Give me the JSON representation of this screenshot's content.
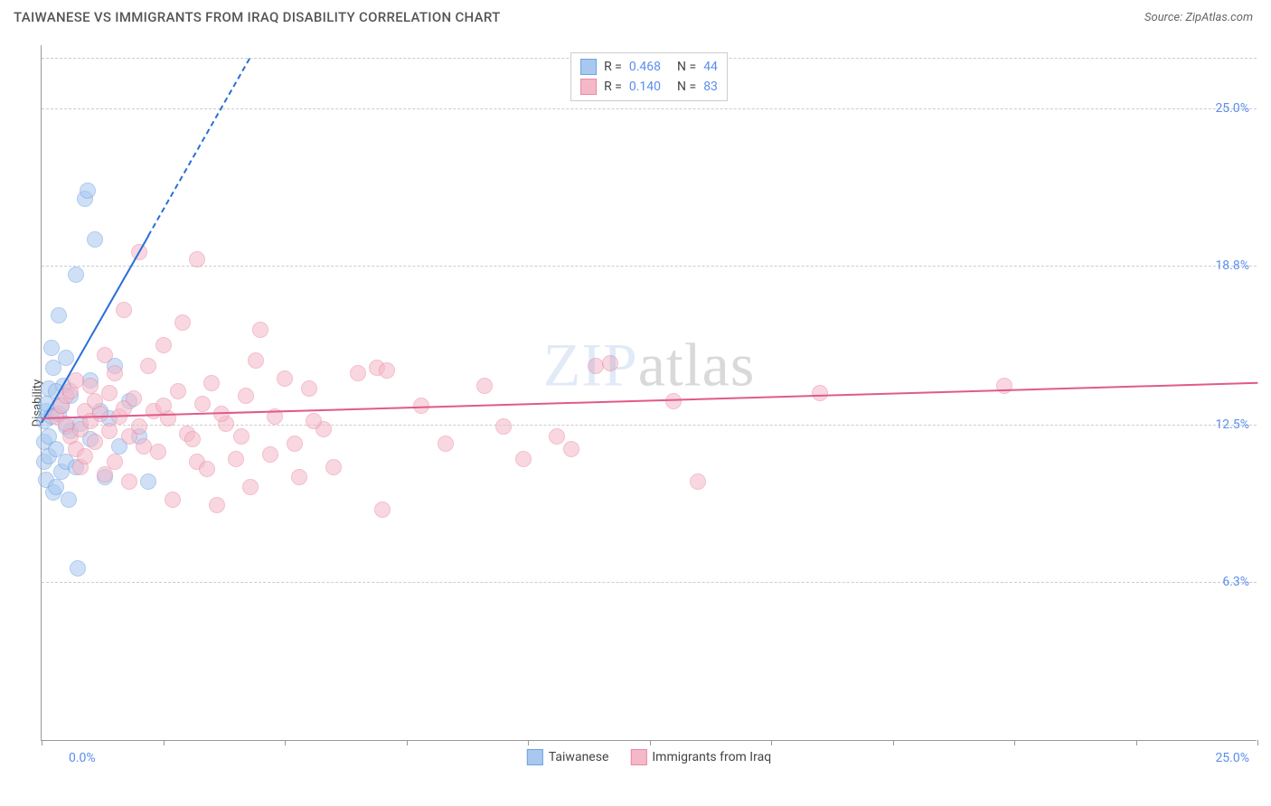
{
  "header": {
    "title": "TAIWANESE VS IMMIGRANTS FROM IRAQ DISABILITY CORRELATION CHART",
    "source_prefix": "Source: ",
    "source_name": "ZipAtlas.com"
  },
  "watermark": {
    "prefix": "ZIP",
    "suffix": "atlas"
  },
  "chart": {
    "type": "scatter",
    "ylabel": "Disability",
    "xlim": [
      0,
      25
    ],
    "ylim": [
      0,
      27.5
    ],
    "background_color": "#ffffff",
    "grid_color": "#cccccc",
    "axis_color": "#999999",
    "y_grid_lines": [
      6.3,
      12.5,
      18.8,
      25.0,
      27.0
    ],
    "y_tick_labels": [
      {
        "v": 6.3,
        "label": "6.3%"
      },
      {
        "v": 12.5,
        "label": "12.5%"
      },
      {
        "v": 18.8,
        "label": "18.8%"
      },
      {
        "v": 25.0,
        "label": "25.0%"
      }
    ],
    "x_ticks": [
      0,
      2.5,
      5,
      7.5,
      10,
      12.5,
      15,
      17.5,
      20,
      22.5,
      25
    ],
    "x_axis_label_left": "0.0%",
    "x_axis_label_right": "25.0%",
    "point_radius": 9,
    "point_opacity": 0.55,
    "series": [
      {
        "name": "Taiwanese",
        "fill_color": "#a8c8f0",
        "stroke_color": "#6fa3e0",
        "R": "0.468",
        "N": "44",
        "trend": {
          "x1": 0,
          "y1": 12.6,
          "x2": 2.2,
          "y2": 20.0,
          "extend_dashed_to_y": 27.0,
          "color": "#2a6fd6",
          "width": 2
        },
        "points": [
          [
            0.05,
            11.0
          ],
          [
            0.05,
            11.8
          ],
          [
            0.05,
            12.6
          ],
          [
            0.1,
            13.0
          ],
          [
            0.1,
            13.3
          ],
          [
            0.1,
            10.3
          ],
          [
            0.15,
            13.9
          ],
          [
            0.15,
            12.0
          ],
          [
            0.15,
            11.2
          ],
          [
            0.2,
            12.8
          ],
          [
            0.2,
            15.5
          ],
          [
            0.25,
            14.7
          ],
          [
            0.25,
            9.8
          ],
          [
            0.3,
            10.0
          ],
          [
            0.3,
            11.5
          ],
          [
            0.35,
            16.8
          ],
          [
            0.35,
            12.9
          ],
          [
            0.4,
            13.2
          ],
          [
            0.4,
            10.6
          ],
          [
            0.45,
            14.0
          ],
          [
            0.5,
            15.1
          ],
          [
            0.5,
            11.0
          ],
          [
            0.55,
            9.5
          ],
          [
            0.6,
            12.2
          ],
          [
            0.6,
            13.6
          ],
          [
            0.7,
            18.4
          ],
          [
            0.7,
            10.8
          ],
          [
            0.75,
            6.8
          ],
          [
            0.8,
            12.5
          ],
          [
            0.9,
            21.4
          ],
          [
            0.95,
            21.7
          ],
          [
            1.0,
            14.2
          ],
          [
            1.0,
            11.9
          ],
          [
            1.1,
            19.8
          ],
          [
            1.2,
            13.0
          ],
          [
            1.3,
            10.4
          ],
          [
            1.4,
            12.7
          ],
          [
            1.5,
            14.8
          ],
          [
            1.6,
            11.6
          ],
          [
            1.8,
            13.4
          ],
          [
            2.0,
            12.0
          ],
          [
            2.2,
            10.2
          ],
          [
            0.3,
            13.8
          ],
          [
            0.5,
            12.4
          ]
        ]
      },
      {
        "name": "Immigrants from Iraq",
        "fill_color": "#f5b8c8",
        "stroke_color": "#e88ba5",
        "R": "0.140",
        "N": "83",
        "trend": {
          "x1": 0,
          "y1": 12.8,
          "x2": 25,
          "y2": 14.2,
          "color": "#e05a8a",
          "width": 2
        },
        "points": [
          [
            0.3,
            12.8
          ],
          [
            0.4,
            13.2
          ],
          [
            0.5,
            12.5
          ],
          [
            0.5,
            13.6
          ],
          [
            0.6,
            12.0
          ],
          [
            0.6,
            13.8
          ],
          [
            0.7,
            11.5
          ],
          [
            0.7,
            14.2
          ],
          [
            0.8,
            12.3
          ],
          [
            0.8,
            10.8
          ],
          [
            0.9,
            13.0
          ],
          [
            0.9,
            11.2
          ],
          [
            1.0,
            12.6
          ],
          [
            1.0,
            14.0
          ],
          [
            1.1,
            13.4
          ],
          [
            1.1,
            11.8
          ],
          [
            1.2,
            12.9
          ],
          [
            1.3,
            10.5
          ],
          [
            1.3,
            15.2
          ],
          [
            1.4,
            12.2
          ],
          [
            1.4,
            13.7
          ],
          [
            1.5,
            11.0
          ],
          [
            1.5,
            14.5
          ],
          [
            1.6,
            12.8
          ],
          [
            1.7,
            13.1
          ],
          [
            1.7,
            17.0
          ],
          [
            1.8,
            12.0
          ],
          [
            1.8,
            10.2
          ],
          [
            1.9,
            13.5
          ],
          [
            2.0,
            19.3
          ],
          [
            2.0,
            12.4
          ],
          [
            2.1,
            11.6
          ],
          [
            2.2,
            14.8
          ],
          [
            2.3,
            13.0
          ],
          [
            2.4,
            11.4
          ],
          [
            2.5,
            15.6
          ],
          [
            2.6,
            12.7
          ],
          [
            2.7,
            9.5
          ],
          [
            2.8,
            13.8
          ],
          [
            2.9,
            16.5
          ],
          [
            3.0,
            12.1
          ],
          [
            3.1,
            11.9
          ],
          [
            3.2,
            19.0
          ],
          [
            3.2,
            11.0
          ],
          [
            3.3,
            13.3
          ],
          [
            3.4,
            10.7
          ],
          [
            3.5,
            14.1
          ],
          [
            3.6,
            9.3
          ],
          [
            3.8,
            12.5
          ],
          [
            4.0,
            11.1
          ],
          [
            4.2,
            13.6
          ],
          [
            4.3,
            10.0
          ],
          [
            4.4,
            15.0
          ],
          [
            4.5,
            16.2
          ],
          [
            4.7,
            11.3
          ],
          [
            4.8,
            12.8
          ],
          [
            5.0,
            14.3
          ],
          [
            5.2,
            11.7
          ],
          [
            5.3,
            10.4
          ],
          [
            5.5,
            13.9
          ],
          [
            5.8,
            12.3
          ],
          [
            6.0,
            10.8
          ],
          [
            6.5,
            14.5
          ],
          [
            6.9,
            14.7
          ],
          [
            7.0,
            9.1
          ],
          [
            7.1,
            14.6
          ],
          [
            7.8,
            13.2
          ],
          [
            8.3,
            11.7
          ],
          [
            9.1,
            14.0
          ],
          [
            9.5,
            12.4
          ],
          [
            9.9,
            11.1
          ],
          [
            10.6,
            12.0
          ],
          [
            10.9,
            11.5
          ],
          [
            11.4,
            14.8
          ],
          [
            11.7,
            14.9
          ],
          [
            13.0,
            13.4
          ],
          [
            13.5,
            10.2
          ],
          [
            16.0,
            13.7
          ],
          [
            19.8,
            14.0
          ],
          [
            2.5,
            13.2
          ],
          [
            3.7,
            12.9
          ],
          [
            4.1,
            12.0
          ],
          [
            5.6,
            12.6
          ]
        ]
      }
    ]
  },
  "legend_bottom": [
    {
      "color_fill": "#a8c8f0",
      "color_stroke": "#6fa3e0",
      "label": "Taiwanese"
    },
    {
      "color_fill": "#f5b8c8",
      "color_stroke": "#e88ba5",
      "label": "Immigrants from Iraq"
    }
  ]
}
